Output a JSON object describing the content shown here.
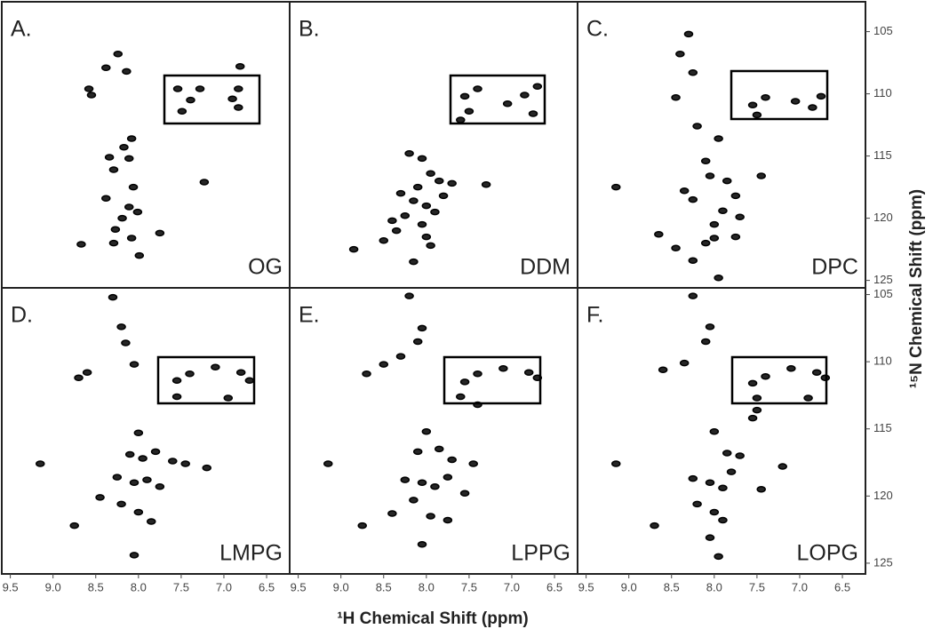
{
  "axis_labels": {
    "x": "¹H Chemical Shift (ppm)",
    "y": "¹⁵N Chemical Shift (ppm)"
  },
  "chart_data": [
    {
      "type": "scatter",
      "title": "A.",
      "label": "OG",
      "color": "#000000",
      "xlim": [
        9.6,
        6.23
      ],
      "ylim": [
        125.6,
        102.6
      ],
      "x": [
        8.24,
        8.38,
        8.14,
        8.58,
        8.55,
        8.08,
        8.17,
        8.34,
        8.11,
        8.29,
        8.06,
        8.38,
        8.11,
        8.01,
        8.19,
        8.27,
        8.08,
        8.67,
        8.29,
        7.99,
        7.75,
        7.54,
        7.39,
        7.28,
        6.9,
        6.83,
        7.49,
        6.83,
        7.23,
        6.81
      ],
      "values": [
        106.8,
        107.9,
        108.2,
        109.6,
        110.1,
        113.6,
        114.3,
        115.1,
        115.2,
        116.1,
        117.5,
        118.4,
        119.1,
        119.5,
        120.0,
        120.9,
        121.6,
        122.1,
        122.0,
        123.0,
        121.2,
        109.6,
        110.5,
        109.6,
        110.4,
        109.6,
        111.4,
        111.1,
        117.1,
        107.8
      ]
    },
    {
      "type": "scatter",
      "title": "B.",
      "label": "DDM",
      "color": "#000000",
      "xlim": [
        9.6,
        6.23
      ],
      "ylim": [
        125.6,
        102.6
      ],
      "x": [
        8.2,
        8.05,
        7.95,
        7.85,
        8.1,
        8.3,
        8.15,
        8.0,
        7.9,
        8.25,
        8.4,
        8.05,
        7.8,
        7.7,
        8.35,
        8.0,
        7.95,
        8.5,
        7.3,
        8.85,
        8.15,
        7.55,
        7.4,
        7.05,
        6.85,
        6.7,
        7.5,
        6.75,
        7.6
      ],
      "values": [
        114.8,
        115.2,
        116.4,
        117.0,
        117.5,
        118.0,
        118.6,
        119.0,
        119.5,
        119.8,
        120.2,
        120.5,
        118.2,
        117.2,
        121.0,
        121.5,
        122.2,
        121.8,
        117.3,
        122.5,
        123.5,
        110.2,
        109.6,
        110.8,
        110.1,
        109.4,
        111.4,
        111.6,
        112.1
      ]
    },
    {
      "type": "scatter",
      "title": "C.",
      "label": "DPC",
      "color": "#000000",
      "xlim": [
        9.6,
        6.23
      ],
      "ylim": [
        125.6,
        102.6
      ],
      "yticks": [
        105,
        110,
        115,
        120,
        125
      ],
      "x": [
        8.3,
        8.25,
        8.4,
        8.45,
        8.2,
        7.95,
        8.1,
        8.05,
        7.85,
        8.35,
        8.25,
        7.9,
        8.0,
        7.75,
        7.7,
        7.45,
        9.15,
        8.65,
        8.45,
        8.1,
        8.0,
        7.75,
        8.25,
        7.95,
        7.55,
        7.4,
        7.05,
        6.85,
        6.75,
        7.5
      ],
      "values": [
        105.2,
        108.3,
        106.8,
        110.3,
        112.6,
        113.6,
        115.4,
        116.6,
        117.0,
        117.8,
        118.5,
        119.4,
        120.5,
        118.2,
        119.9,
        116.6,
        117.5,
        121.3,
        122.4,
        122.0,
        121.6,
        121.5,
        123.4,
        124.8,
        110.9,
        110.3,
        110.6,
        111.1,
        110.2,
        111.7
      ]
    },
    {
      "type": "scatter",
      "title": "D.",
      "label": "LMPG",
      "color": "#000000",
      "xlim": [
        9.6,
        6.23
      ],
      "ylim": [
        125.8,
        104.5
      ],
      "xticks": [
        9.5,
        {
          "value": 9,
          "label": "9.0"
        },
        8.5,
        {
          "value": 8,
          "label": "8.0"
        },
        7.5,
        {
          "value": 7,
          "label": "7.0"
        },
        6.5
      ],
      "x": [
        8.3,
        8.2,
        8.15,
        8.05,
        8.6,
        8.7,
        9.15,
        8.0,
        8.1,
        7.95,
        7.8,
        7.6,
        7.45,
        8.25,
        8.05,
        7.9,
        7.75,
        7.2,
        8.45,
        8.2,
        8.0,
        7.85,
        8.75,
        8.05,
        7.55,
        7.4,
        7.1,
        6.8,
        6.7,
        7.55,
        6.95
      ],
      "values": [
        105.2,
        107.4,
        108.6,
        110.2,
        110.8,
        111.2,
        117.6,
        115.3,
        116.9,
        117.2,
        116.7,
        117.4,
        117.6,
        118.6,
        119.0,
        118.8,
        119.3,
        117.9,
        120.1,
        120.6,
        121.2,
        121.9,
        122.2,
        124.4,
        111.4,
        110.9,
        110.4,
        110.8,
        111.4,
        112.6,
        112.7
      ]
    },
    {
      "type": "scatter",
      "title": "E.",
      "label": "LPPG",
      "color": "#000000",
      "xlim": [
        9.6,
        6.23
      ],
      "ylim": [
        125.8,
        104.5
      ],
      "xticks": [
        9.5,
        {
          "value": 9,
          "label": "9.0"
        },
        8.5,
        {
          "value": 8,
          "label": "8.0"
        },
        7.5,
        {
          "value": 7,
          "label": "7.0"
        },
        6.5
      ],
      "x": [
        8.2,
        8.05,
        8.1,
        8.3,
        8.7,
        8.5,
        9.15,
        8.0,
        8.1,
        7.85,
        7.7,
        7.45,
        8.25,
        8.05,
        7.9,
        7.75,
        7.55,
        8.4,
        8.15,
        7.95,
        7.75,
        8.75,
        8.05,
        7.55,
        7.4,
        7.1,
        6.8,
        6.7,
        7.6,
        7.4
      ],
      "values": [
        105.1,
        107.5,
        108.5,
        109.6,
        110.9,
        110.2,
        117.6,
        115.2,
        116.7,
        116.5,
        117.3,
        117.6,
        118.8,
        119.0,
        119.3,
        118.6,
        119.8,
        121.3,
        120.3,
        121.5,
        121.8,
        122.2,
        123.6,
        111.5,
        110.9,
        110.5,
        110.8,
        111.2,
        112.6,
        113.2
      ]
    },
    {
      "type": "scatter",
      "title": "F.",
      "label": "LOPG",
      "color": "#000000",
      "xlim": [
        9.6,
        6.23
      ],
      "ylim": [
        125.8,
        104.5
      ],
      "xticks": [
        9.5,
        {
          "value": 9,
          "label": "9.0"
        },
        8.5,
        {
          "value": 8,
          "label": "8.0"
        },
        7.5,
        {
          "value": 7,
          "label": "7.0"
        },
        6.5
      ],
      "yticks": [
        105,
        110,
        115,
        120,
        125
      ],
      "x": [
        8.25,
        8.05,
        8.1,
        8.35,
        8.6,
        9.15,
        8.0,
        7.85,
        7.7,
        7.55,
        7.2,
        8.25,
        8.05,
        7.9,
        7.8,
        7.45,
        8.2,
        8.0,
        7.9,
        8.7,
        8.05,
        7.95,
        7.5,
        7.55,
        7.4,
        7.1,
        6.8,
        6.7,
        7.5,
        6.9
      ],
      "values": [
        105.1,
        107.4,
        108.5,
        110.1,
        110.6,
        117.6,
        115.2,
        116.8,
        117.0,
        114.2,
        117.8,
        118.7,
        119.0,
        119.4,
        118.2,
        119.5,
        120.6,
        121.2,
        121.8,
        122.2,
        123.1,
        124.5,
        113.6,
        111.6,
        111.1,
        110.5,
        110.8,
        111.2,
        112.7,
        112.7
      ]
    }
  ]
}
